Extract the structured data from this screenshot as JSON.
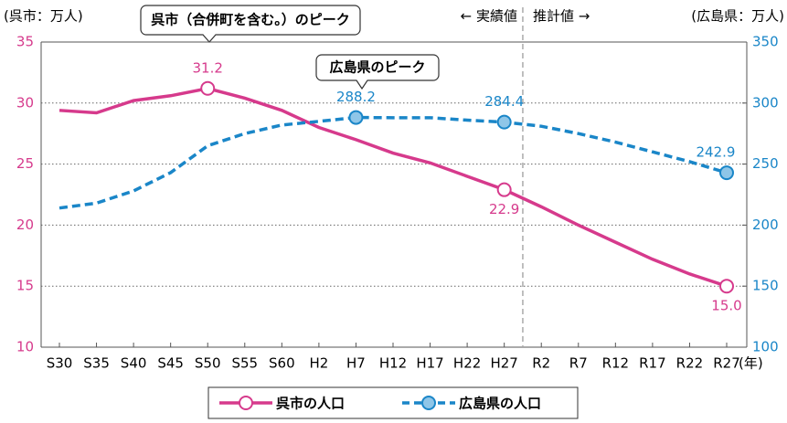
{
  "chart_data": {
    "type": "line",
    "categories": [
      "S30",
      "S35",
      "S40",
      "S45",
      "S50",
      "S55",
      "S60",
      "H2",
      "H7",
      "H12",
      "H17",
      "H22",
      "H27",
      "R2",
      "R7",
      "R12",
      "R17",
      "R22",
      "R27"
    ],
    "x_unit_label": "(年)",
    "y_axis_label": "(呉市：万人)",
    "y2_axis_label": "(広島県：万人)",
    "annotations": [
      "呉市（合併町を含む。）のピーク",
      "広島県のピーク",
      "← 実績値",
      "推計値 →"
    ],
    "ylim": [
      10,
      35
    ],
    "yticks": [
      10,
      15,
      20,
      25,
      30,
      35
    ],
    "y2lim": [
      100,
      350
    ],
    "y2ticks": [
      100,
      150,
      200,
      250,
      300,
      350
    ],
    "grid": true,
    "legend": "bottom",
    "series": [
      {
        "name": "呉市の人口",
        "color": "#d63a8c",
        "axis": "y",
        "values": [
          29.4,
          29.2,
          30.2,
          30.6,
          31.2,
          30.4,
          29.4,
          28.0,
          27.0,
          25.9,
          25.1,
          24.0,
          22.9,
          21.5,
          20.0,
          18.6,
          17.2,
          16.0,
          15.0
        ],
        "value_labels": [
          null,
          null,
          null,
          null,
          "31.2",
          null,
          null,
          null,
          null,
          null,
          null,
          null,
          "22.9",
          null,
          null,
          null,
          null,
          null,
          "15.0"
        ]
      },
      {
        "name": "広島県の人口",
        "color": "#1a86c8",
        "axis": "y2",
        "values": [
          214,
          218,
          228,
          243,
          265,
          275,
          282,
          285,
          288.2,
          288,
          288,
          286,
          284.4,
          281,
          275,
          268,
          260,
          252,
          242.9
        ],
        "value_labels": [
          null,
          null,
          null,
          null,
          null,
          null,
          null,
          null,
          "288.2",
          null,
          null,
          null,
          "284.4",
          null,
          null,
          null,
          null,
          null,
          "242.9"
        ]
      }
    ]
  }
}
